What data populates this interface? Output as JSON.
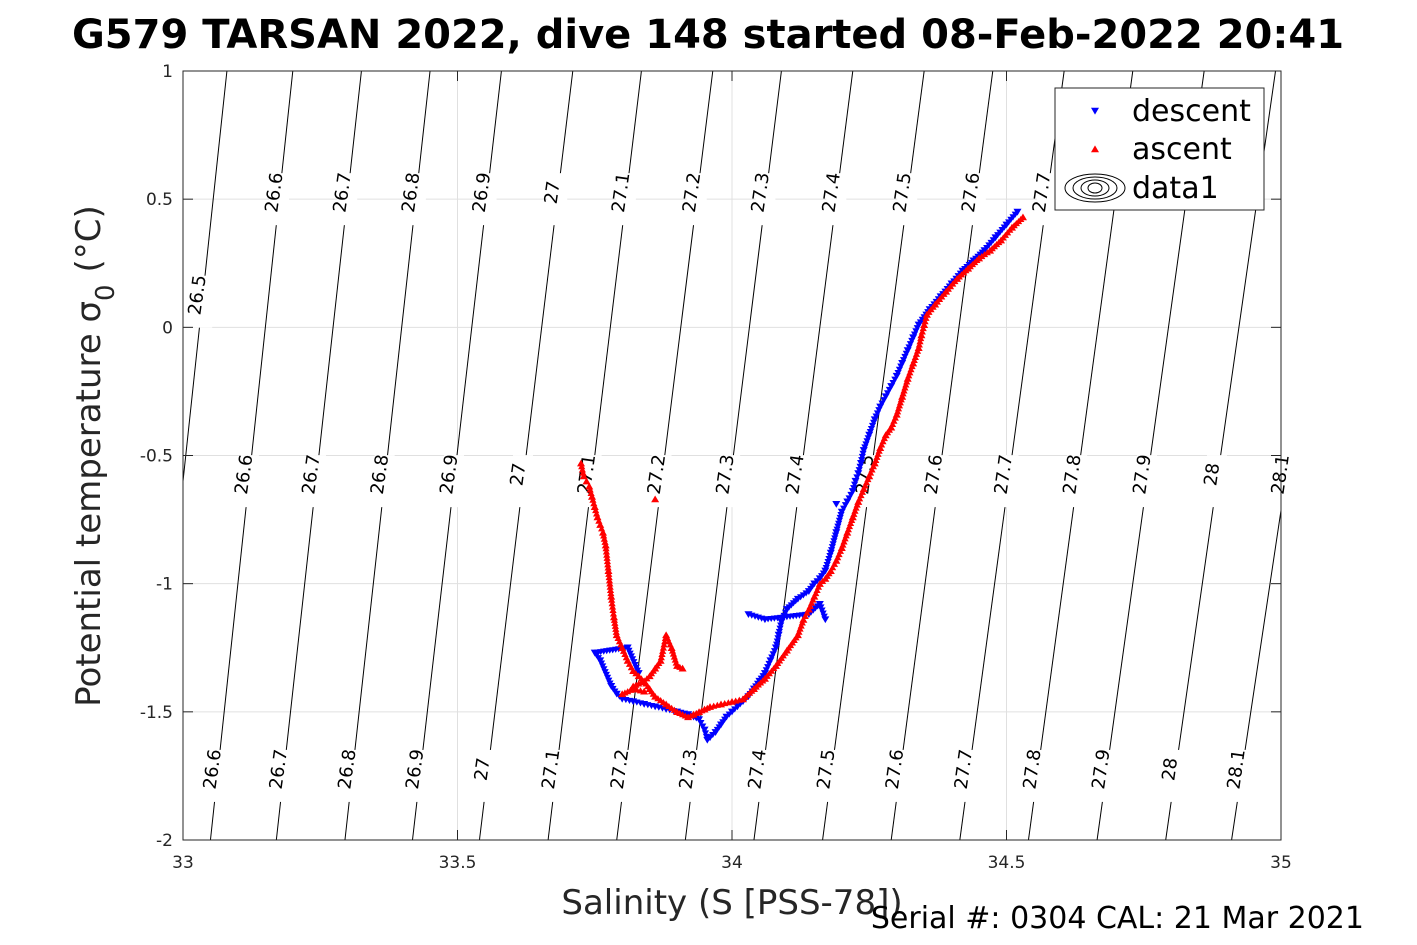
{
  "chart_data": {
    "type": "scatter",
    "title": "G579 TARSAN 2022, dive 148 started 08-Feb-2022 20:41",
    "xlabel": "Salinity (S [PSS-78])",
    "ylabel": "Potential temperature σ",
    "ylabel_sub": "0",
    "ylabel_unit": "(°C)",
    "footer": "Serial #: 0304  CAL: 21 Mar 2021",
    "xlim": [
      33,
      35
    ],
    "ylim": [
      -2,
      1
    ],
    "xticks": [
      33,
      33.5,
      34,
      34.5,
      35
    ],
    "xtick_labels": [
      "33",
      "33.5",
      "34",
      "34.5",
      "35"
    ],
    "yticks": [
      -2,
      -1.5,
      -1,
      -0.5,
      0,
      0.5,
      1
    ],
    "ytick_labels": [
      "-2",
      "-1.5",
      "-1",
      "-0.5",
      "0",
      "0.5",
      "1"
    ],
    "grid": true,
    "legend_position": "top-right",
    "legend": [
      "descent",
      "ascent",
      "data1"
    ],
    "density_contours": {
      "levels": [
        "26.5",
        "26.6",
        "26.7",
        "26.8",
        "26.9",
        "27",
        "27.1",
        "27.2",
        "27.3",
        "27.4",
        "27.5",
        "27.6",
        "27.7",
        "27.8",
        "27.9",
        "28",
        "28.1"
      ],
      "s_at_theta_m2": [
        32.93,
        33.05,
        33.17,
        33.295,
        33.418,
        33.54,
        33.665,
        33.79,
        33.915,
        34.04,
        34.165,
        34.29,
        34.415,
        34.54,
        34.665,
        34.79,
        34.91
      ],
      "s_at_theta_1": [
        33.08,
        33.2,
        33.325,
        33.45,
        33.58,
        33.71,
        33.835,
        33.965,
        34.09,
        34.22,
        34.35,
        34.475,
        34.605,
        34.73,
        34.86,
        34.99,
        35.12
      ],
      "label_rows": {
        "theta_0_5": [
          "26.6",
          "26.7",
          "26.8",
          "26.9",
          "27",
          "27.1",
          "27.2",
          "27.3",
          "27.4",
          "27.5",
          "27.6",
          "27.7"
        ],
        "theta_m0_6": [
          "26.6",
          "26.7",
          "26.8",
          "26.9",
          "27",
          "27.1",
          "27.2",
          "27.3",
          "27.4",
          "27.5",
          "27.6",
          "27.7",
          "27.8",
          "27.9",
          "28",
          "28.1"
        ],
        "theta_m1_75": [
          "26.6",
          "26.7",
          "26.8",
          "26.9",
          "27",
          "27.1",
          "27.2",
          "27.3",
          "27.4",
          "27.5",
          "27.6",
          "27.7",
          "27.8",
          "27.9",
          "28",
          "28.1"
        ],
        "theta_0_1": [
          "26.5"
        ]
      }
    },
    "series": [
      {
        "name": "descent",
        "color": "#0000ff",
        "marker": "triangle-down",
        "x": [
          34.52,
          34.5,
          34.48,
          34.46,
          34.44,
          34.42,
          34.4,
          34.38,
          34.36,
          34.34,
          34.33,
          34.32,
          34.31,
          34.3,
          34.29,
          34.28,
          34.27,
          34.26,
          34.25,
          34.24,
          34.235,
          34.23,
          34.225,
          34.22,
          34.21,
          34.2,
          34.19,
          34.18,
          34.17,
          34.16,
          34.15,
          34.14,
          34.12,
          34.1,
          34.09,
          34.085,
          34.08,
          34.07,
          34.06,
          34.05,
          34.04,
          34.03,
          34.02,
          34.01,
          34.0,
          33.99,
          33.98,
          33.97,
          33.96,
          33.955,
          33.95,
          33.94,
          33.93,
          33.92,
          33.9,
          33.88,
          33.86,
          33.84,
          33.82,
          33.8,
          33.79,
          33.78,
          33.76,
          33.75,
          33.81,
          33.83,
          34.03,
          34.06,
          34.14,
          34.16,
          34.17,
          34.19
        ],
        "y": [
          0.45,
          0.4,
          0.35,
          0.3,
          0.26,
          0.22,
          0.17,
          0.12,
          0.07,
          0.01,
          -0.04,
          -0.09,
          -0.14,
          -0.19,
          -0.23,
          -0.27,
          -0.31,
          -0.36,
          -0.42,
          -0.48,
          -0.53,
          -0.57,
          -0.6,
          -0.64,
          -0.68,
          -0.72,
          -0.8,
          -0.88,
          -0.95,
          -0.98,
          -1.0,
          -1.03,
          -1.06,
          -1.1,
          -1.15,
          -1.2,
          -1.25,
          -1.3,
          -1.35,
          -1.38,
          -1.41,
          -1.44,
          -1.46,
          -1.48,
          -1.5,
          -1.52,
          -1.55,
          -1.58,
          -1.6,
          -1.61,
          -1.57,
          -1.53,
          -1.52,
          -1.51,
          -1.5,
          -1.49,
          -1.48,
          -1.47,
          -1.46,
          -1.45,
          -1.43,
          -1.4,
          -1.3,
          -1.27,
          -1.25,
          -1.35,
          -1.12,
          -1.14,
          -1.12,
          -1.08,
          -1.14,
          -0.69
        ]
      },
      {
        "name": "ascent",
        "color": "#ff0000",
        "marker": "triangle-up",
        "x": [
          34.53,
          34.51,
          34.49,
          34.47,
          34.45,
          34.43,
          34.41,
          34.39,
          34.37,
          34.355,
          34.35,
          34.345,
          34.34,
          34.33,
          34.32,
          34.31,
          34.3,
          34.29,
          34.28,
          34.27,
          34.26,
          34.25,
          34.24,
          34.23,
          34.22,
          34.21,
          34.2,
          34.19,
          34.18,
          34.17,
          34.16,
          34.15,
          34.14,
          34.13,
          34.12,
          34.1,
          34.08,
          34.06,
          34.04,
          34.02,
          34.0,
          33.98,
          33.96,
          33.95,
          33.94,
          33.93,
          33.92,
          33.9,
          33.88,
          33.86,
          33.85,
          33.84,
          33.83,
          33.82,
          33.81,
          33.8,
          33.79,
          33.785,
          33.78,
          33.775,
          33.77,
          33.765,
          33.76,
          33.755,
          33.75,
          33.745,
          33.74,
          33.735,
          33.73,
          33.725,
          33.82,
          33.84,
          33.85,
          33.86,
          33.87,
          33.88,
          33.89,
          33.9,
          33.91,
          33.86,
          33.84,
          33.82,
          33.8
        ],
        "y": [
          0.43,
          0.39,
          0.34,
          0.3,
          0.27,
          0.23,
          0.19,
          0.14,
          0.09,
          0.05,
          0.01,
          -0.03,
          -0.08,
          -0.14,
          -0.2,
          -0.27,
          -0.34,
          -0.39,
          -0.42,
          -0.47,
          -0.53,
          -0.58,
          -0.63,
          -0.68,
          -0.74,
          -0.8,
          -0.86,
          -0.91,
          -0.95,
          -0.98,
          -1.0,
          -1.05,
          -1.1,
          -1.14,
          -1.2,
          -1.26,
          -1.32,
          -1.37,
          -1.41,
          -1.45,
          -1.46,
          -1.47,
          -1.48,
          -1.49,
          -1.5,
          -1.51,
          -1.52,
          -1.5,
          -1.47,
          -1.44,
          -1.41,
          -1.38,
          -1.36,
          -1.34,
          -1.3,
          -1.25,
          -1.2,
          -1.13,
          -1.05,
          -0.95,
          -0.85,
          -0.8,
          -0.77,
          -0.74,
          -0.7,
          -0.66,
          -0.62,
          -0.6,
          -0.58,
          -0.53,
          -1.4,
          -1.38,
          -1.36,
          -1.33,
          -1.3,
          -1.2,
          -1.25,
          -1.32,
          -1.33,
          -0.67,
          -1.42,
          -1.41,
          -1.43
        ]
      }
    ]
  }
}
